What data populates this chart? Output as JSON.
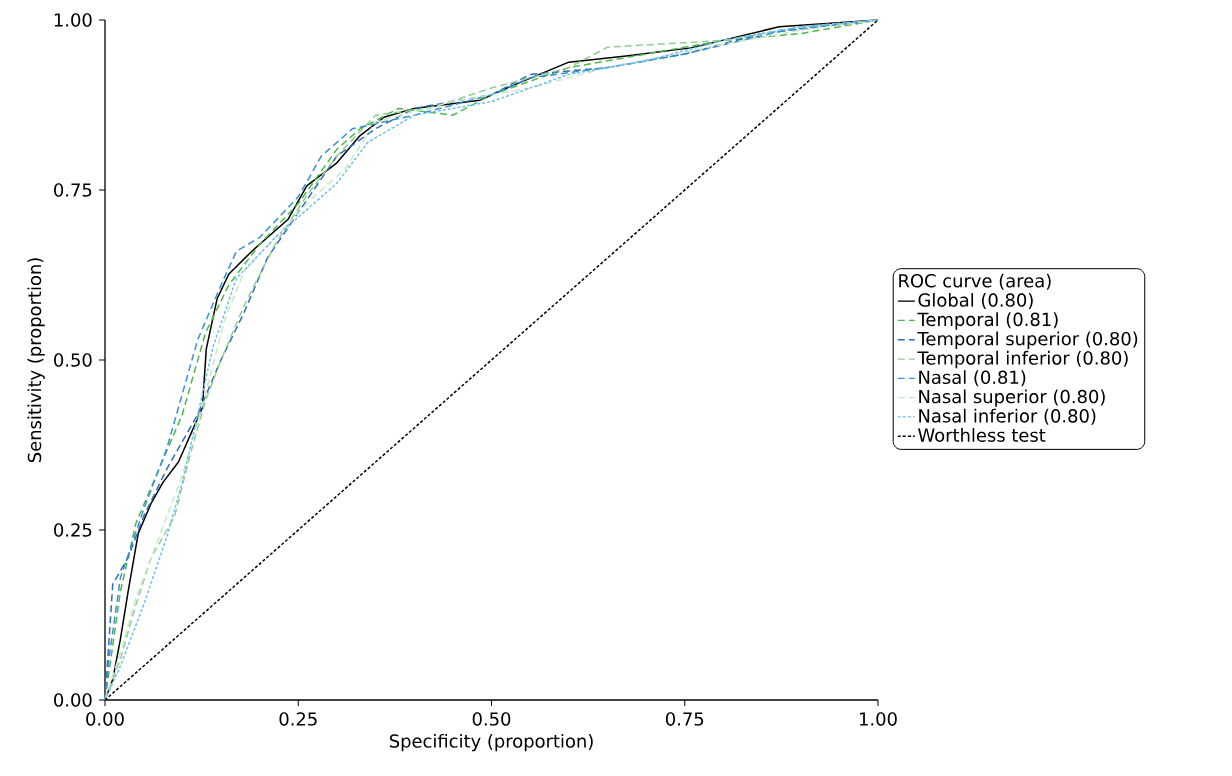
{
  "chart_data": {
    "type": "line",
    "xlabel": "Specificity (proportion)",
    "ylabel": "Sensitivity (proportion)",
    "legend_title": "ROC curve (area)",
    "legend": "right",
    "grid": false,
    "marker": "none",
    "xlim": [
      0,
      1
    ],
    "ylim": [
      0,
      1
    ],
    "xticks": [
      {
        "value": 0,
        "label": "0.00"
      },
      {
        "value": 0.25,
        "label": "0.25"
      },
      {
        "value": 0.5,
        "label": "0.50"
      },
      {
        "value": 0.75,
        "label": "0.75"
      },
      {
        "value": 1,
        "label": "1.00"
      }
    ],
    "yticks": [
      {
        "value": 0,
        "label": "0.00"
      },
      {
        "value": 0.25,
        "label": "0.25"
      },
      {
        "value": 0.5,
        "label": "0.50"
      },
      {
        "value": 0.75,
        "label": "0.75"
      },
      {
        "value": 1,
        "label": "1.00"
      }
    ],
    "series": [
      {
        "name": "Global (0.80)",
        "color": "#000000",
        "line_style": "solid",
        "x": [
          0,
          0.01,
          0.02,
          0.03,
          0.043,
          0.06,
          0.075,
          0.095,
          0.126,
          0.131,
          0.145,
          0.16,
          0.19,
          0.237,
          0.261,
          0.3,
          0.33,
          0.361,
          0.4,
          0.485,
          0.52,
          0.6,
          0.674,
          0.758,
          0.872,
          1
        ],
        "values": [
          0,
          0.03,
          0.09,
          0.16,
          0.245,
          0.29,
          0.32,
          0.35,
          0.43,
          0.516,
          0.59,
          0.626,
          0.66,
          0.707,
          0.756,
          0.79,
          0.83,
          0.857,
          0.87,
          0.882,
          0.9,
          0.938,
          0.947,
          0.959,
          0.99,
          1
        ]
      },
      {
        "name": "Temporal (0.81)",
        "color": "#4cb848",
        "line_style": "dashed",
        "x": [
          0,
          0.01,
          0.02,
          0.04,
          0.07,
          0.1,
          0.13,
          0.16,
          0.2,
          0.25,
          0.3,
          0.33,
          0.38,
          0.45,
          0.5,
          0.6,
          0.7,
          0.8,
          0.9,
          1
        ],
        "values": [
          0,
          0.08,
          0.16,
          0.26,
          0.34,
          0.42,
          0.54,
          0.61,
          0.67,
          0.73,
          0.81,
          0.84,
          0.87,
          0.86,
          0.89,
          0.93,
          0.95,
          0.97,
          0.98,
          1
        ]
      },
      {
        "name": "Temporal superior (0.80)",
        "color": "#2d6db5",
        "line_style": "dashed",
        "x": [
          0,
          0.01,
          0.03,
          0.05,
          0.08,
          0.12,
          0.15,
          0.18,
          0.21,
          0.24,
          0.27,
          0.3,
          0.35,
          0.4,
          0.5,
          0.55,
          0.65,
          0.75,
          0.85,
          1
        ],
        "values": [
          0,
          0.17,
          0.21,
          0.27,
          0.34,
          0.42,
          0.5,
          0.57,
          0.65,
          0.7,
          0.75,
          0.8,
          0.84,
          0.87,
          0.89,
          0.92,
          0.93,
          0.95,
          0.98,
          1
        ]
      },
      {
        "name": "Temporal inferior (0.80)",
        "color": "#8fcf8f",
        "line_style": "dashed",
        "x": [
          0,
          0.02,
          0.04,
          0.06,
          0.09,
          0.11,
          0.13,
          0.15,
          0.18,
          0.22,
          0.26,
          0.3,
          0.35,
          0.42,
          0.5,
          0.6,
          0.65,
          0.8,
          0.9,
          1
        ],
        "values": [
          0,
          0.06,
          0.14,
          0.21,
          0.27,
          0.36,
          0.44,
          0.5,
          0.58,
          0.67,
          0.74,
          0.8,
          0.86,
          0.87,
          0.9,
          0.93,
          0.96,
          0.97,
          0.99,
          1
        ]
      },
      {
        "name": "Nasal (0.81)",
        "color": "#3a8fd8",
        "line_style": "dashed",
        "x": [
          0,
          0.005,
          0.02,
          0.05,
          0.08,
          0.1,
          0.12,
          0.15,
          0.17,
          0.2,
          0.25,
          0.28,
          0.32,
          0.4,
          0.5,
          0.55,
          0.65,
          0.75,
          0.88,
          1
        ],
        "values": [
          0,
          0.06,
          0.18,
          0.28,
          0.37,
          0.45,
          0.53,
          0.61,
          0.66,
          0.68,
          0.74,
          0.8,
          0.84,
          0.86,
          0.89,
          0.915,
          0.93,
          0.95,
          0.985,
          1
        ]
      },
      {
        "name": "Nasal superior (0.80)",
        "color": "#c8e6c8",
        "line_style": "dashed",
        "x": [
          0,
          0.02,
          0.04,
          0.07,
          0.1,
          0.13,
          0.155,
          0.18,
          0.22,
          0.27,
          0.31,
          0.35,
          0.45,
          0.55,
          0.65,
          0.78,
          0.9,
          1
        ],
        "values": [
          0,
          0.07,
          0.15,
          0.24,
          0.33,
          0.45,
          0.56,
          0.63,
          0.68,
          0.74,
          0.78,
          0.85,
          0.88,
          0.9,
          0.93,
          0.96,
          0.985,
          1
        ]
      },
      {
        "name": "Nasal inferior (0.80)",
        "color": "#6ec0ee",
        "line_style": "dotted",
        "x": [
          0,
          0.02,
          0.05,
          0.08,
          0.1,
          0.12,
          0.14,
          0.17,
          0.22,
          0.26,
          0.3,
          0.34,
          0.4,
          0.5,
          0.6,
          0.7,
          0.8,
          0.9,
          1
        ],
        "values": [
          0,
          0.05,
          0.14,
          0.24,
          0.32,
          0.42,
          0.52,
          0.62,
          0.68,
          0.72,
          0.76,
          0.82,
          0.86,
          0.88,
          0.92,
          0.94,
          0.97,
          0.99,
          1
        ]
      },
      {
        "name": "Worthless test",
        "color": "#000000",
        "line_style": "dotted",
        "x": [
          0,
          1
        ],
        "values": [
          0,
          1
        ]
      }
    ]
  }
}
